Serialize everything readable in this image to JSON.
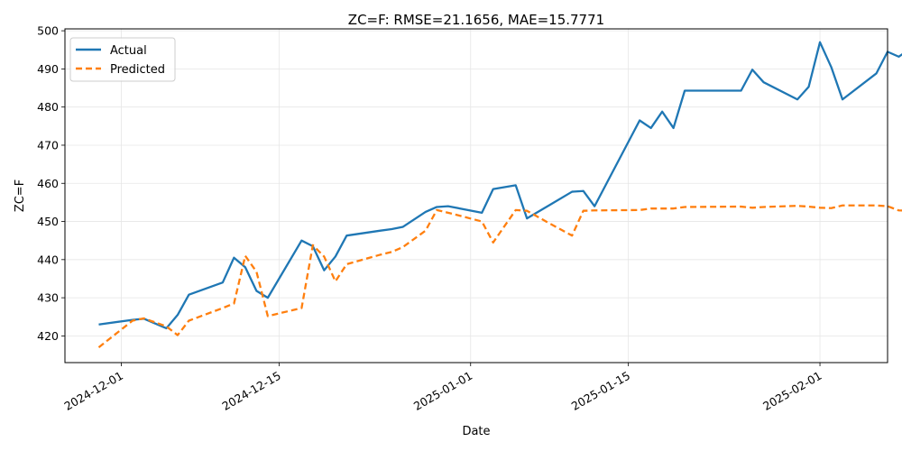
{
  "chart_data": {
    "type": "line",
    "title": "ZC=F: RMSE=21.1656, MAE=15.7771",
    "xlabel": "Date",
    "ylabel": "ZC=F",
    "xlim": [
      "2024-11-26",
      "2025-02-07"
    ],
    "ylim": [
      413,
      500.5
    ],
    "x_ticks": [
      "2024-12-01",
      "2024-12-15",
      "2025-01-01",
      "2025-01-15",
      "2025-02-01"
    ],
    "y_ticks": [
      420,
      430,
      440,
      450,
      460,
      470,
      480,
      490,
      500
    ],
    "grid": true,
    "legend_position": "top-left",
    "series": [
      {
        "name": "Actual",
        "color": "#1f77b4",
        "style": "solid",
        "points": [
          [
            "2024-11-29",
            423.0
          ],
          [
            "2024-12-02",
            424.2
          ],
          [
            "2024-12-03",
            424.5
          ],
          [
            "2024-12-05",
            422.0
          ],
          [
            "2024-12-06",
            425.5
          ],
          [
            "2024-12-07",
            430.8
          ],
          [
            "2024-12-10",
            434.0
          ],
          [
            "2024-12-11",
            440.5
          ],
          [
            "2024-12-12",
            438.0
          ],
          [
            "2024-12-13",
            431.8
          ],
          [
            "2024-12-14",
            430.0
          ],
          [
            "2024-12-17",
            445.0
          ],
          [
            "2024-12-18",
            443.5
          ],
          [
            "2024-12-19",
            437.2
          ],
          [
            "2024-12-20",
            440.8
          ],
          [
            "2024-12-21",
            446.3
          ],
          [
            "2024-12-24",
            447.6
          ],
          [
            "2024-12-25",
            448.0
          ],
          [
            "2024-12-26",
            448.6
          ],
          [
            "2024-12-28",
            452.5
          ],
          [
            "2024-12-29",
            453.8
          ],
          [
            "2024-12-30",
            454.0
          ],
          [
            "2025-01-02",
            452.3
          ],
          [
            "2025-01-03",
            458.5
          ],
          [
            "2025-01-05",
            459.5
          ],
          [
            "2025-01-06",
            450.8
          ],
          [
            "2025-01-08",
            454.3
          ],
          [
            "2025-01-10",
            457.8
          ],
          [
            "2025-01-11",
            458.0
          ],
          [
            "2025-01-12",
            454.0
          ],
          [
            "2025-01-16",
            476.5
          ],
          [
            "2025-01-17",
            474.5
          ],
          [
            "2025-01-18",
            478.8
          ],
          [
            "2025-01-19",
            474.5
          ],
          [
            "2025-01-20",
            484.3
          ],
          [
            "2025-01-25",
            484.3
          ],
          [
            "2025-01-26",
            489.8
          ],
          [
            "2025-01-27",
            486.5
          ],
          [
            "2025-01-30",
            482.0
          ],
          [
            "2025-01-31",
            485.3
          ],
          [
            "2025-02-01",
            497.0
          ],
          [
            "2025-02-02",
            490.5
          ],
          [
            "2025-02-03",
            482.0
          ],
          [
            "2025-02-06",
            488.8
          ],
          [
            "2025-02-07",
            494.5
          ],
          [
            "2025-02-08",
            493.2
          ],
          [
            "2025-02-09",
            495.3
          ]
        ]
      },
      {
        "name": "Predicted",
        "color": "#ff7f0e",
        "style": "dashed",
        "points": [
          [
            "2024-11-29",
            417.0
          ],
          [
            "2024-12-02",
            424.0
          ],
          [
            "2024-12-03",
            424.6
          ],
          [
            "2024-12-05",
            422.5
          ],
          [
            "2024-12-06",
            420.2
          ],
          [
            "2024-12-07",
            424.0
          ],
          [
            "2024-12-10",
            427.3
          ],
          [
            "2024-12-11",
            428.5
          ],
          [
            "2024-12-12",
            441.0
          ],
          [
            "2024-12-13",
            436.8
          ],
          [
            "2024-12-14",
            425.2
          ],
          [
            "2024-12-17",
            427.3
          ],
          [
            "2024-12-18",
            443.8
          ],
          [
            "2024-12-19",
            440.8
          ],
          [
            "2024-12-20",
            434.3
          ],
          [
            "2024-12-21",
            438.8
          ],
          [
            "2024-12-24",
            441.3
          ],
          [
            "2024-12-25",
            442.0
          ],
          [
            "2024-12-26",
            443.3
          ],
          [
            "2024-12-28",
            447.6
          ],
          [
            "2024-12-29",
            453.0
          ],
          [
            "2024-12-30",
            452.3
          ],
          [
            "2025-01-02",
            450.0
          ],
          [
            "2025-01-03",
            444.5
          ],
          [
            "2025-01-05",
            453.0
          ],
          [
            "2025-01-06",
            452.8
          ],
          [
            "2025-01-08",
            449.5
          ],
          [
            "2025-01-10",
            446.3
          ],
          [
            "2025-01-11",
            452.8
          ],
          [
            "2025-01-12",
            452.9
          ],
          [
            "2025-01-16",
            453.0
          ],
          [
            "2025-01-17",
            453.4
          ],
          [
            "2025-01-18",
            453.4
          ],
          [
            "2025-01-19",
            453.4
          ],
          [
            "2025-01-20",
            453.8
          ],
          [
            "2025-01-25",
            453.9
          ],
          [
            "2025-01-26",
            453.6
          ],
          [
            "2025-01-27",
            453.8
          ],
          [
            "2025-01-30",
            454.1
          ],
          [
            "2025-01-31",
            453.9
          ],
          [
            "2025-02-01",
            453.6
          ],
          [
            "2025-02-02",
            453.5
          ],
          [
            "2025-02-03",
            454.2
          ],
          [
            "2025-02-06",
            454.2
          ],
          [
            "2025-02-07",
            454.0
          ],
          [
            "2025-02-08",
            452.9
          ],
          [
            "2025-02-09",
            452.8
          ]
        ]
      }
    ]
  }
}
